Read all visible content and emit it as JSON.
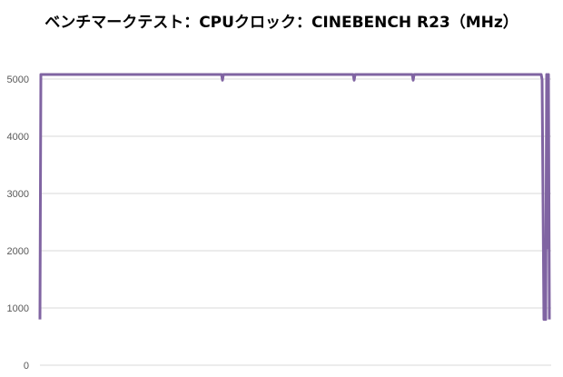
{
  "chart_data": {
    "type": "line",
    "title": "ベンチマークテスト：CPUクロック：CINEBENCH R23（MHz）",
    "xlabel": "",
    "ylabel": "",
    "ylim": [
      0,
      5000
    ],
    "xlim": [
      0,
      563
    ],
    "yticks": [
      "0",
      "1000",
      "2000",
      "3000",
      "4000",
      "5000"
    ],
    "grid": true,
    "legend": "none",
    "colors": {
      "line": "#8064A2",
      "grid": "#D9D9D9"
    },
    "series": [
      {
        "x": [
          0,
          1,
          200,
          201,
          202,
          345,
          346,
          347,
          410,
          411,
          412,
          552,
          553,
          555,
          557,
          558,
          559,
          560,
          561
        ],
        "values": [
          800,
          5080,
          5080,
          4980,
          5080,
          5080,
          4980,
          5080,
          5080,
          4980,
          5080,
          5080,
          4990,
          800,
          800,
          5080,
          2050,
          5080,
          800
        ]
      }
    ]
  }
}
